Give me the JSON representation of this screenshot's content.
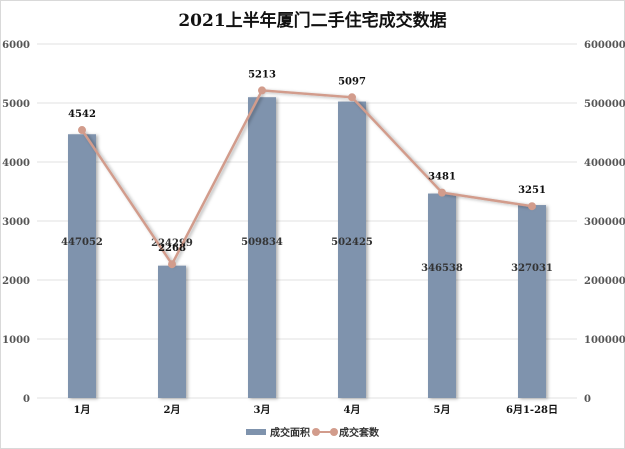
{
  "chart_data": {
    "type": "bar+line",
    "title": "2021上半年厦门二手住宅成交数据",
    "categories": [
      "1月",
      "2月",
      "3月",
      "4月",
      "5月",
      "6月1-28日"
    ],
    "series": [
      {
        "name": "成交面积",
        "type": "bar",
        "axis": "right",
        "color": "#7f93ad",
        "values": [
          447052,
          224299,
          509834,
          502425,
          346538,
          327031
        ]
      },
      {
        "name": "成交套数",
        "type": "line",
        "axis": "left",
        "color": "#d29c8c",
        "values": [
          4542,
          2268,
          5213,
          5097,
          3481,
          3251
        ]
      }
    ],
    "left_axis": {
      "min": 0,
      "max": 6000,
      "ticks": [
        "0",
        "1000",
        "2000",
        "3000",
        "4000",
        "5000",
        "6000"
      ]
    },
    "right_axis": {
      "min": 0,
      "max": 600000,
      "ticks": [
        "0",
        "100000",
        "200000",
        "300000",
        "400000",
        "500000",
        "600000"
      ]
    },
    "grid": true,
    "legend_position": "bottom"
  },
  "legend": {
    "bar_label": "成交面积",
    "line_label": "成交套数"
  }
}
